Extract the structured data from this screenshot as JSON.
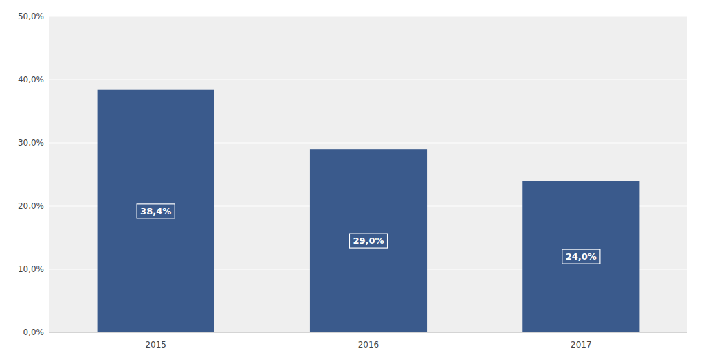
{
  "chart_data": {
    "type": "bar",
    "categories": [
      "2015",
      "2016",
      "2017"
    ],
    "values": [
      38.4,
      29.0,
      24.0
    ],
    "value_labels": [
      "38,4%",
      "29,0%",
      "24,0%"
    ],
    "data_labels": true,
    "color": "#3A5A8C",
    "ylim": [
      0,
      50
    ],
    "yticks": [
      {
        "value": 0,
        "label": "0,0%"
      },
      {
        "value": 10,
        "label": "10,0%"
      },
      {
        "value": 20,
        "label": "20,0%"
      },
      {
        "value": 30,
        "label": "30,0%"
      },
      {
        "value": 40,
        "label": "40,0%"
      },
      {
        "value": 50,
        "label": "50,0%"
      }
    ],
    "grid": true
  }
}
